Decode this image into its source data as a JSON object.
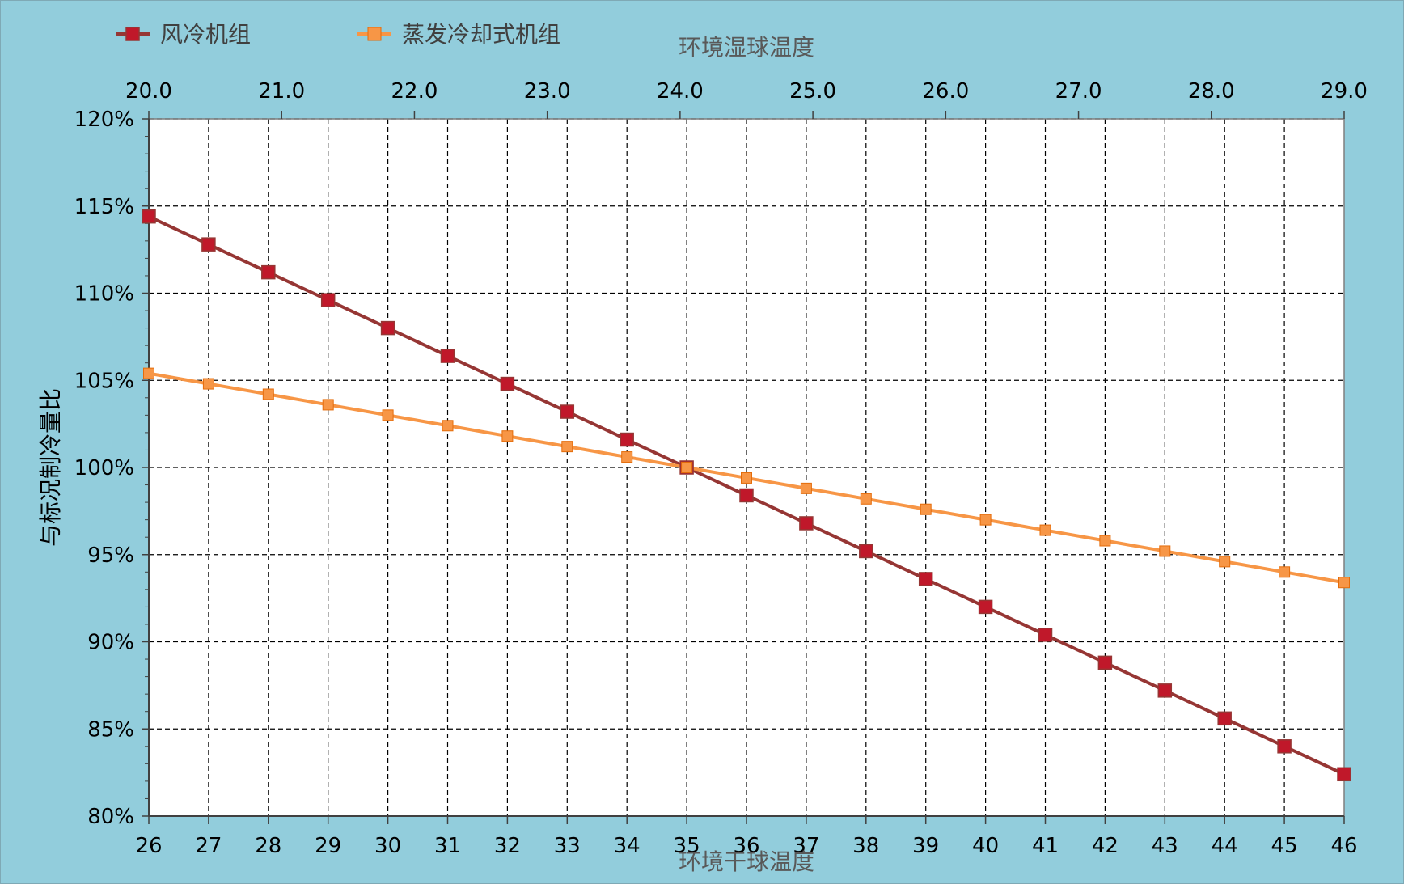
{
  "chart_data": {
    "type": "line",
    "title": "",
    "legend": {
      "placement": "top-left",
      "entries": [
        "风冷机组",
        "蒸发冷却式机组"
      ]
    },
    "x_top": {
      "label": "环境湿球温度",
      "ticks": [
        "20.0",
        "21.0",
        "22.0",
        "23.0",
        "24.0",
        "25.0",
        "26.0",
        "27.0",
        "28.0",
        "29.0"
      ],
      "range": [
        20.0,
        29.0
      ]
    },
    "x_bottom": {
      "label": "环境干球温度",
      "categories": [
        "26",
        "27",
        "28",
        "29",
        "30",
        "31",
        "32",
        "33",
        "34",
        "35",
        "36",
        "37",
        "38",
        "39",
        "40",
        "41",
        "42",
        "43",
        "44",
        "45",
        "46"
      ]
    },
    "y": {
      "label": "与标况制冷量比",
      "ticks": [
        "80%",
        "85%",
        "90%",
        "95%",
        "100%",
        "105%",
        "110%",
        "115%",
        "120%"
      ],
      "range": [
        80,
        120
      ],
      "unit": "%"
    },
    "grid": true,
    "series": [
      {
        "name": "风冷机组",
        "color": "#963634",
        "marker_color": "#c0182a",
        "values": [
          114.4,
          112.8,
          111.2,
          109.6,
          108.0,
          106.4,
          104.8,
          103.2,
          101.6,
          100.0,
          98.4,
          96.8,
          95.2,
          93.6,
          92.0,
          90.4,
          88.8,
          87.2,
          85.6,
          84.0,
          82.4
        ]
      },
      {
        "name": "蒸发冷却式机组",
        "color": "#f79646",
        "marker_color": "#f79646",
        "values": [
          105.4,
          104.8,
          104.2,
          103.6,
          103.0,
          102.4,
          101.8,
          101.2,
          100.6,
          100.0,
          99.4,
          98.8,
          98.2,
          97.6,
          97.0,
          96.4,
          95.8,
          95.2,
          94.6,
          94.0,
          93.4
        ]
      }
    ]
  },
  "colors": {
    "background": "#92cddc",
    "plot_area": "#ffffff"
  }
}
